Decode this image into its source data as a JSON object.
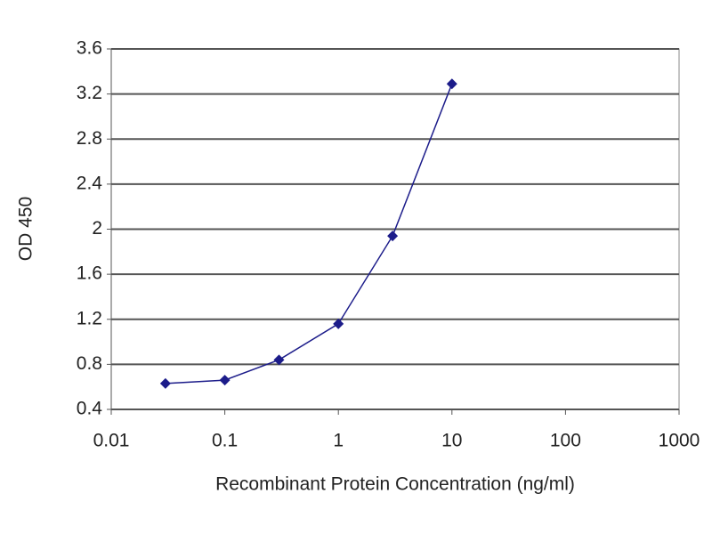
{
  "chart_data": {
    "type": "line",
    "xlabel": "Recombinant Protein Concentration (ng/ml)",
    "ylabel": "OD 450",
    "xscale": "log",
    "xlim": [
      0.01,
      1000
    ],
    "xticks": [
      0.01,
      0.1,
      1,
      10,
      100,
      1000
    ],
    "ylim": [
      0.4,
      3.6
    ],
    "yticks": [
      0.4,
      0.8,
      1.2,
      1.6,
      2,
      2.4,
      2.8,
      3.2,
      3.6
    ],
    "grid": true,
    "series": [
      {
        "color": "#1c1c8a",
        "x": [
          0.03,
          0.1,
          0.3,
          1,
          3,
          10
        ],
        "values": [
          0.63,
          0.66,
          0.84,
          1.16,
          1.94,
          3.29
        ]
      }
    ]
  }
}
